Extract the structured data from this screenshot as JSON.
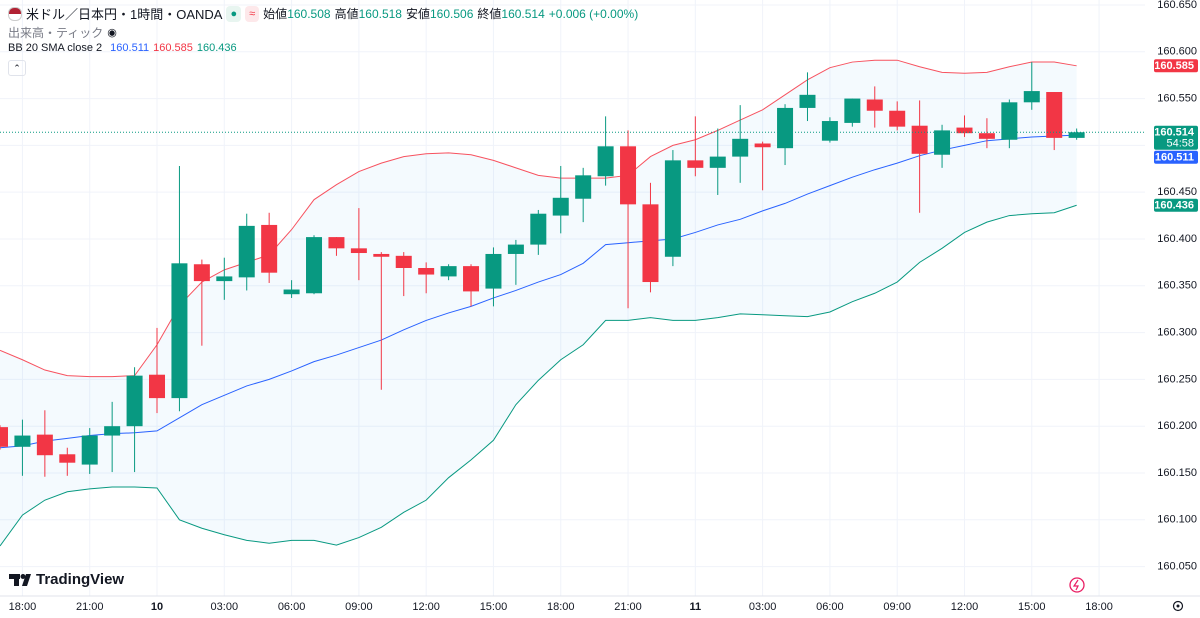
{
  "chart_data": {
    "type": "candlestick",
    "title": "米ドル／日本円・1時間・OANDA",
    "header_labels": [
      "始値",
      "高値",
      "安値",
      "終値"
    ],
    "change": "+0.006 (+0.00%)",
    "volume_label": "出来高・ティック",
    "indicator": "BB 20 SMA close 2",
    "watermark": "TradingView",
    "countdown": "54:58",
    "categories": [
      null,
      "18:00",
      null,
      null,
      "21:00",
      null,
      null,
      "10",
      null,
      null,
      "03:00",
      null,
      null,
      "06:00",
      null,
      null,
      "09:00",
      null,
      null,
      "12:00",
      null,
      null,
      "15:00",
      null,
      null,
      "18:00",
      null,
      null,
      "21:00",
      null,
      null,
      "11",
      null,
      null,
      "03:00",
      null,
      null,
      "06:00",
      null,
      null,
      "09:00",
      null,
      null,
      "12:00",
      null,
      null,
      "15:00",
      null,
      null,
      "18:00"
    ],
    "open": [
      160.199,
      160.178,
      160.191,
      160.17,
      160.159,
      160.19,
      160.2,
      160.255,
      160.23,
      160.373,
      160.355,
      160.359,
      160.415,
      160.341,
      160.342,
      160.402,
      160.39,
      160.384,
      160.382,
      160.369,
      160.36,
      160.371,
      160.347,
      160.384,
      160.394,
      160.425,
      160.443,
      160.467,
      160.499,
      160.437,
      160.381,
      160.484,
      160.476,
      160.488,
      160.502,
      160.497,
      160.54,
      160.505,
      160.524,
      160.549,
      160.537,
      160.521,
      160.49,
      160.519,
      160.513,
      160.506,
      160.546,
      160.557,
      160.508,
      null
    ],
    "high": [
      160.201,
      160.207,
      160.217,
      160.177,
      160.198,
      160.226,
      160.263,
      160.305,
      160.478,
      160.378,
      160.38,
      160.427,
      160.428,
      160.356,
      160.404,
      160.402,
      160.433,
      160.386,
      160.386,
      160.375,
      160.373,
      160.373,
      160.391,
      160.399,
      160.431,
      160.478,
      160.476,
      160.531,
      160.516,
      160.46,
      160.495,
      160.531,
      160.518,
      160.543,
      160.504,
      160.544,
      160.578,
      160.53,
      160.55,
      160.563,
      160.547,
      160.548,
      160.522,
      160.532,
      160.529,
      160.549,
      160.589,
      160.557,
      160.518,
      null
    ],
    "low": [
      160.175,
      160.147,
      160.146,
      160.147,
      160.149,
      160.151,
      160.151,
      160.214,
      160.216,
      160.286,
      160.335,
      160.345,
      160.353,
      160.337,
      160.341,
      160.382,
      160.356,
      160.239,
      160.339,
      160.342,
      160.356,
      160.328,
      160.328,
      160.351,
      160.383,
      160.406,
      160.418,
      160.457,
      160.326,
      160.343,
      160.371,
      160.467,
      160.447,
      160.46,
      160.452,
      160.479,
      160.526,
      160.503,
      160.52,
      160.519,
      160.516,
      160.428,
      160.476,
      160.509,
      160.497,
      160.497,
      160.538,
      160.495,
      160.506,
      null
    ],
    "close": [
      160.178,
      160.19,
      160.169,
      160.161,
      160.19,
      160.2,
      160.254,
      160.23,
      160.374,
      160.355,
      160.36,
      160.414,
      160.364,
      160.346,
      160.402,
      160.39,
      160.385,
      160.381,
      160.369,
      160.362,
      160.371,
      160.344,
      160.384,
      160.394,
      160.427,
      160.444,
      160.468,
      160.499,
      160.437,
      160.354,
      160.484,
      160.476,
      160.488,
      160.507,
      160.498,
      160.54,
      160.554,
      160.526,
      160.55,
      160.537,
      160.52,
      160.491,
      160.516,
      160.513,
      160.507,
      160.546,
      160.558,
      160.508,
      160.514,
      null
    ],
    "bb_upper": [
      160.281,
      160.271,
      160.26,
      160.254,
      160.253,
      160.253,
      160.254,
      160.287,
      160.329,
      160.354,
      160.367,
      160.375,
      160.383,
      160.41,
      160.442,
      160.458,
      160.472,
      160.481,
      160.488,
      160.491,
      160.492,
      160.49,
      160.484,
      160.476,
      160.468,
      160.465,
      160.465,
      160.465,
      160.468,
      160.488,
      160.5,
      160.506,
      160.516,
      160.527,
      160.538,
      160.554,
      160.57,
      160.583,
      160.589,
      160.591,
      160.591,
      160.584,
      160.578,
      160.577,
      160.578,
      160.584,
      160.589,
      160.589,
      160.585,
      null
    ],
    "bb_middle": [
      160.177,
      160.179,
      160.184,
      160.187,
      160.19,
      160.192,
      160.193,
      160.195,
      160.209,
      160.223,
      160.233,
      160.243,
      160.25,
      160.259,
      160.269,
      160.276,
      160.284,
      160.292,
      160.303,
      160.313,
      160.321,
      160.328,
      160.337,
      160.345,
      160.354,
      160.362,
      160.374,
      160.394,
      160.396,
      160.398,
      160.4,
      160.407,
      160.415,
      160.421,
      160.43,
      160.438,
      160.448,
      160.457,
      160.466,
      160.474,
      160.481,
      160.489,
      160.495,
      160.5,
      160.505,
      160.507,
      160.509,
      160.51,
      160.511,
      null
    ],
    "bb_lower": [
      160.072,
      160.105,
      160.121,
      160.13,
      160.133,
      160.135,
      160.135,
      160.134,
      160.1,
      160.091,
      160.084,
      160.078,
      160.075,
      160.078,
      160.078,
      160.073,
      160.081,
      160.092,
      160.108,
      160.121,
      160.145,
      160.164,
      160.185,
      160.223,
      160.249,
      160.271,
      160.287,
      160.313,
      160.313,
      160.316,
      160.313,
      160.313,
      160.316,
      160.32,
      160.319,
      160.318,
      160.317,
      160.322,
      160.333,
      160.342,
      160.354,
      160.375,
      160.39,
      160.407,
      160.418,
      160.425,
      160.427,
      160.428,
      160.436,
      null
    ],
    "up_color": "#089981",
    "down_color": "#f23645",
    "upper_color": "#f7525f",
    "middle_color": "#2962ff",
    "lower_color": "#089981",
    "ylim": [
      160.0186,
      160.6553
    ],
    "yticks": [
      {
        "value": 160.65,
        "label": "160.650"
      },
      {
        "value": 160.6,
        "label": "160.600"
      },
      {
        "value": 160.55,
        "label": "160.550"
      },
      {
        "value": 160.5,
        "label": "160.500"
      },
      {
        "value": 160.45,
        "label": "160.450"
      },
      {
        "value": 160.4,
        "label": "160.400"
      },
      {
        "value": 160.35,
        "label": "160.350"
      },
      {
        "value": 160.3,
        "label": "160.300"
      },
      {
        "value": 160.25,
        "label": "160.250"
      },
      {
        "value": 160.2,
        "label": "160.200"
      },
      {
        "value": 160.15,
        "label": "160.150"
      },
      {
        "value": 160.1,
        "label": "160.100"
      },
      {
        "value": 160.05,
        "label": "160.050"
      }
    ],
    "grid": true
  }
}
